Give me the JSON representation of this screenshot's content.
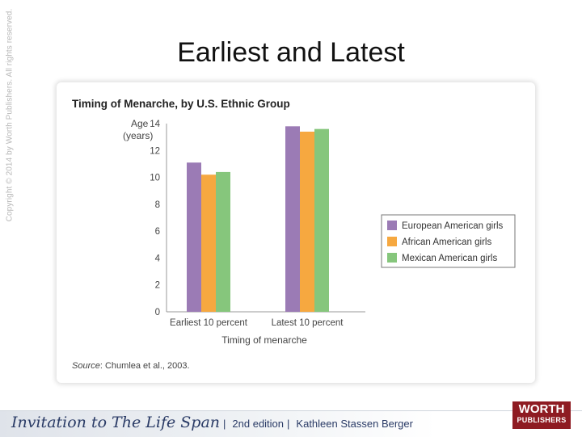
{
  "slide": {
    "title": "Earliest and Latest",
    "copyright": "Copyright © 2014 by Worth Publishers. All rights reserved."
  },
  "chart": {
    "source_label": "Source",
    "source_text": ": Chumlea et al., 2003."
  },
  "footer": {
    "book_title": "Invitation to The Life Span",
    "edition": "2nd edition",
    "author": "Kathleen Stassen Berger",
    "separator": "|",
    "publisher_line1": "WORTH",
    "publisher_line2": "PUBLISHERS"
  },
  "chart_data": {
    "type": "bar",
    "title": "Timing of Menarche, by U.S. Ethnic Group",
    "ylabel_lines": [
      "Age",
      "(years)"
    ],
    "xlabel": "Timing of menarche",
    "categories": [
      "Earliest 10 percent",
      "Latest 10 percent"
    ],
    "ylim": [
      0,
      14
    ],
    "yticks": [
      0,
      2,
      4,
      6,
      8,
      10,
      12,
      14
    ],
    "grid": false,
    "legend_position": "right",
    "series": [
      {
        "name": "European American girls",
        "color": "#9b7bb5",
        "values": [
          11.1,
          13.8
        ]
      },
      {
        "name": "African American girls",
        "color": "#f6a840",
        "values": [
          10.2,
          13.4
        ]
      },
      {
        "name": "Mexican American girls",
        "color": "#86c67c",
        "values": [
          10.4,
          13.6
        ]
      }
    ]
  }
}
